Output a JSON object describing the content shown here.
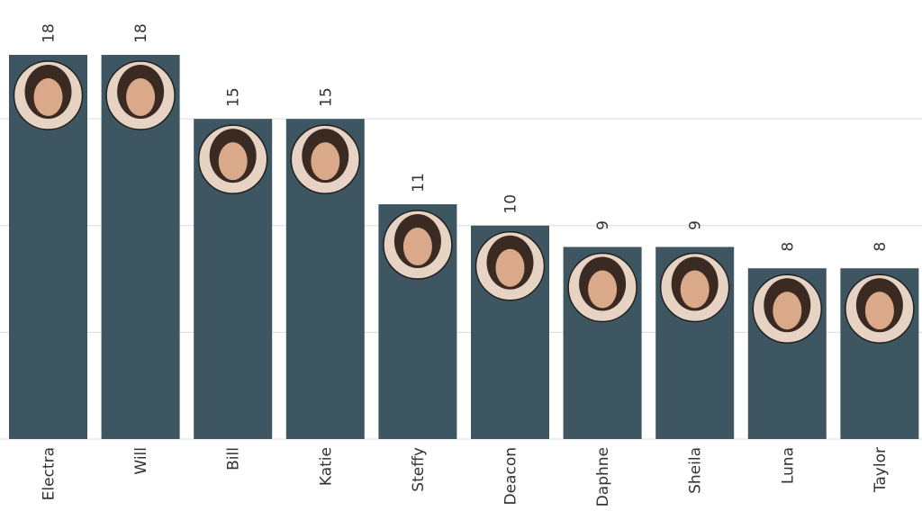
{
  "chart_data": {
    "type": "bar",
    "title": "",
    "xlabel": "",
    "ylabel": "",
    "categories": [
      "Electra",
      "Will",
      "Bill",
      "Katie",
      "Steffy",
      "Deacon",
      "Daphne",
      "Sheila",
      "Luna",
      "Taylor"
    ],
    "values": [
      18,
      18,
      15,
      15,
      11,
      10,
      9,
      9,
      8,
      8
    ],
    "ylim": [
      0,
      18
    ],
    "grid": true,
    "legend": "none",
    "bar_color": "#3d5661",
    "grid_color": "#dcdcdc",
    "avatar_icons": [
      "electra-avatar-icon",
      "will-avatar-icon",
      "bill-avatar-icon",
      "katie-avatar-icon",
      "steffy-avatar-icon",
      "deacon-avatar-icon",
      "daphne-avatar-icon",
      "sheila-avatar-icon",
      "luna-avatar-icon",
      "taylor-avatar-icon"
    ]
  }
}
